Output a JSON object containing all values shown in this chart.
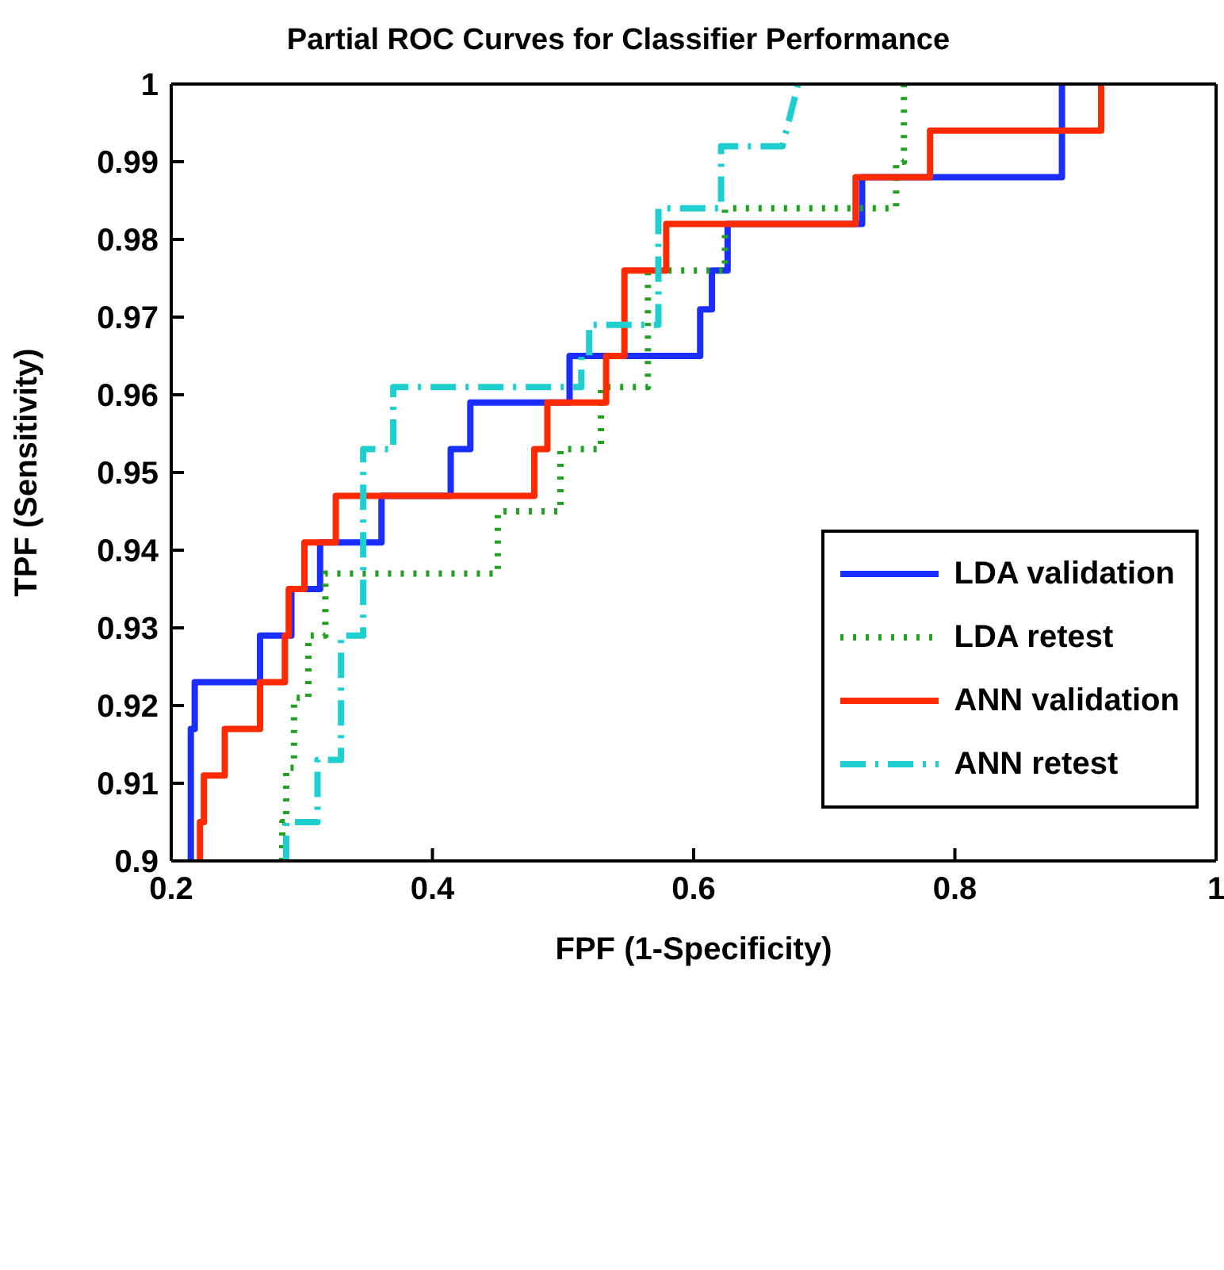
{
  "chart_data": {
    "type": "line",
    "title": "Partial ROC Curves for Classifier Performance",
    "xlabel": "FPF (1-Specificity)",
    "ylabel": "TPF (Sensitivity)",
    "xlim": [
      0.2,
      1
    ],
    "xticks": [
      0.2,
      0.4,
      0.6,
      0.8,
      1
    ],
    "ylim": [
      0.9,
      1
    ],
    "yticks": [
      0.9,
      0.91,
      0.92,
      0.93,
      0.94,
      0.95,
      0.96,
      0.97,
      0.98,
      0.99,
      1
    ],
    "grid": false,
    "legend": "right",
    "marker": "none",
    "series": [
      {
        "name": "LDA validation",
        "color": "#1a2eff",
        "line_style": "solid",
        "x": [
          0.215,
          0.215,
          0.218,
          0.218,
          0.268,
          0.268,
          0.292,
          0.292,
          0.314,
          0.314,
          0.361,
          0.361,
          0.414,
          0.414,
          0.429,
          0.429,
          0.505,
          0.505,
          0.605,
          0.605,
          0.614,
          0.614,
          0.626,
          0.626,
          0.729,
          0.729,
          0.882,
          0.882
        ],
        "values": [
          0.9,
          0.917,
          0.917,
          0.923,
          0.923,
          0.929,
          0.929,
          0.935,
          0.935,
          0.941,
          0.941,
          0.947,
          0.947,
          0.953,
          0.953,
          0.959,
          0.959,
          0.965,
          0.965,
          0.971,
          0.971,
          0.976,
          0.976,
          0.982,
          0.982,
          0.988,
          0.988,
          1
        ]
      },
      {
        "name": "LDA retest",
        "color": "#22a022",
        "line_style": "dotted",
        "x": [
          0.285,
          0.285,
          0.288,
          0.288,
          0.294,
          0.294,
          0.305,
          0.305,
          0.318,
          0.318,
          0.45,
          0.45,
          0.498,
          0.498,
          0.529,
          0.529,
          0.565,
          0.565,
          0.624,
          0.624,
          0.755,
          0.755,
          0.761,
          0.761
        ],
        "values": [
          0.9,
          0.905,
          0.905,
          0.912,
          0.912,
          0.921,
          0.921,
          0.929,
          0.929,
          0.937,
          0.937,
          0.945,
          0.945,
          0.953,
          0.953,
          0.961,
          0.961,
          0.976,
          0.976,
          0.984,
          0.984,
          0.99,
          0.99,
          1
        ]
      },
      {
        "name": "ANN validation",
        "color": "#ff2a00",
        "line_style": "solid",
        "x": [
          0.222,
          0.222,
          0.225,
          0.225,
          0.241,
          0.241,
          0.268,
          0.268,
          0.287,
          0.287,
          0.29,
          0.29,
          0.302,
          0.302,
          0.326,
          0.326,
          0.478,
          0.478,
          0.488,
          0.488,
          0.533,
          0.533,
          0.547,
          0.547,
          0.579,
          0.579,
          0.724,
          0.724,
          0.781,
          0.781,
          0.912,
          0.912
        ],
        "values": [
          0.9,
          0.905,
          0.905,
          0.911,
          0.911,
          0.917,
          0.917,
          0.923,
          0.923,
          0.929,
          0.929,
          0.935,
          0.935,
          0.941,
          0.941,
          0.947,
          0.947,
          0.953,
          0.953,
          0.959,
          0.959,
          0.965,
          0.965,
          0.976,
          0.976,
          0.982,
          0.982,
          0.988,
          0.988,
          0.994,
          0.994,
          1
        ]
      },
      {
        "name": "ANN retest",
        "color": "#1fcfd0",
        "line_style": "dashdot",
        "x": [
          0.288,
          0.288,
          0.312,
          0.312,
          0.33,
          0.33,
          0.347,
          0.347,
          0.37,
          0.37,
          0.514,
          0.514,
          0.52,
          0.52,
          0.573,
          0.573,
          0.621,
          0.621,
          0.668,
          0.68
        ],
        "values": [
          0.9,
          0.905,
          0.905,
          0.913,
          0.913,
          0.929,
          0.929,
          0.953,
          0.953,
          0.961,
          0.961,
          0.965,
          0.965,
          0.969,
          0.969,
          0.984,
          0.984,
          0.992,
          0.992,
          1
        ]
      }
    ]
  }
}
